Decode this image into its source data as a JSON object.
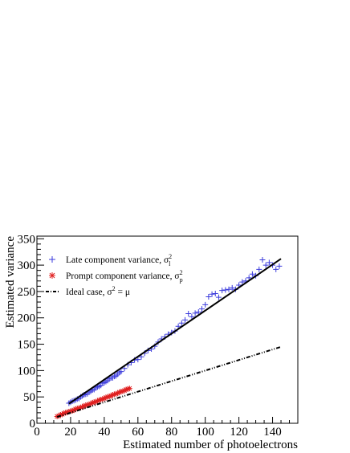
{
  "chart_data": {
    "type": "scatter",
    "xlabel": "Estimated number of photoelectrons",
    "ylabel": "Estimated variance",
    "xlim": [
      0,
      155
    ],
    "ylim": [
      0,
      355
    ],
    "x_ticks": [
      "0",
      "20",
      "40",
      "60",
      "80",
      "100",
      "120",
      "140"
    ],
    "y_ticks": [
      "0",
      "50",
      "100",
      "150",
      "200",
      "250",
      "300",
      "350"
    ],
    "legend_position": "top-left",
    "colors": {
      "late": "#3b3bdc",
      "prompt": "#e02020",
      "ideal": "#000000",
      "fit": "#000000"
    },
    "legend": [
      {
        "key": "late",
        "text": "Late component variance, σ",
        "sub": "l",
        "sup": "2"
      },
      {
        "key": "prompt",
        "text": "Prompt component variance, σ",
        "sub": "p",
        "sup": "2"
      },
      {
        "key": "ideal",
        "text": "Ideal case, σ",
        "sup": "2",
        "tail": " = μ"
      }
    ],
    "series": [
      {
        "key": "late",
        "marker": "plus",
        "x": [
          19,
          20,
          21,
          22,
          23,
          24,
          25,
          26,
          27,
          28,
          29,
          30,
          31,
          32,
          33,
          34,
          35,
          36,
          37,
          38,
          39,
          40,
          41,
          42,
          43,
          44,
          45,
          46,
          47,
          48,
          49,
          50,
          52,
          54,
          56,
          58,
          60,
          62,
          64,
          66,
          68,
          70,
          72,
          74,
          76,
          78,
          80,
          82,
          84,
          86,
          88,
          90,
          92,
          94,
          96,
          98,
          100,
          102,
          104,
          106,
          108,
          110,
          112,
          114,
          116,
          118,
          120,
          122,
          124,
          126,
          128,
          130,
          132,
          134,
          136,
          138,
          140,
          142,
          144
        ],
        "y": [
          38,
          40,
          42,
          43,
          44,
          46,
          47,
          50,
          52,
          54,
          55,
          56,
          59,
          61,
          63,
          64,
          67,
          69,
          70,
          72,
          76,
          77,
          79,
          81,
          84,
          86,
          86,
          89,
          90,
          93,
          96,
          98,
          104,
          111,
          115,
          120,
          121,
          126,
          133,
          138,
          141,
          146,
          154,
          160,
          164,
          169,
          172,
          175,
          184,
          190,
          196,
          208,
          202,
          209,
          211,
          217,
          225,
          240,
          245,
          246,
          239,
          252,
          253,
          254,
          257,
          254,
          262,
          268,
          270,
          276,
          283,
          280,
          292,
          310,
          300,
          305,
          300,
          292,
          298
        ]
      },
      {
        "key": "prompt",
        "marker": "star",
        "x": [
          12,
          13,
          14,
          15,
          16,
          17,
          18,
          19,
          20,
          21,
          22,
          23,
          24,
          25,
          26,
          27,
          28,
          29,
          30,
          31,
          32,
          33,
          34,
          35,
          36,
          37,
          38,
          39,
          40,
          41,
          42,
          43,
          44,
          45,
          46,
          47,
          48,
          49,
          50,
          51,
          52,
          53,
          54,
          55
        ],
        "y": [
          13,
          14,
          16,
          17,
          19,
          20,
          21,
          22,
          23,
          24,
          25,
          27,
          28,
          29,
          30,
          31,
          33,
          34,
          35,
          36,
          37,
          39,
          40,
          41,
          42,
          44,
          45,
          46,
          47,
          49,
          50,
          51,
          52,
          54,
          55,
          56,
          57,
          59,
          60,
          61,
          62,
          64,
          65,
          66
        ]
      }
    ],
    "fit_line": {
      "x": [
        19,
        145
      ],
      "y": [
        37,
        312
      ]
    },
    "ideal_line": {
      "x": [
        12,
        145
      ],
      "y": [
        12,
        145
      ]
    }
  }
}
